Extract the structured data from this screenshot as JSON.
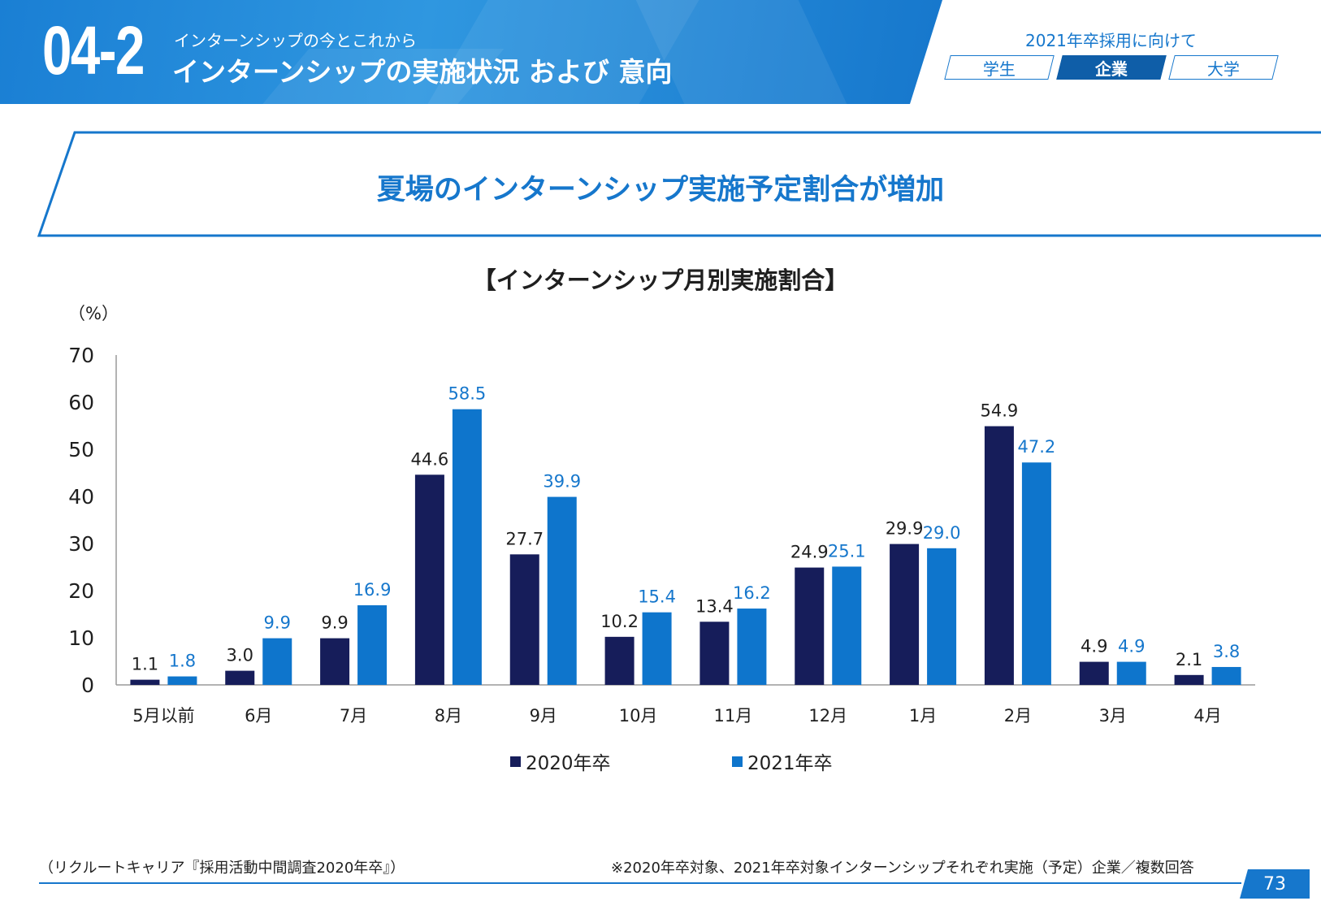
{
  "header": {
    "section_no": "04-2",
    "subtitle": "インターンシップの今とこれから",
    "title": "インターンシップの実施状況 および 意向",
    "recruit_label": "2021年卒採用に向けて",
    "tabs": [
      {
        "label": "学生",
        "active": false
      },
      {
        "label": "企業",
        "active": true
      },
      {
        "label": "大学",
        "active": false
      }
    ]
  },
  "headline": "夏場のインターンシップ実施予定割合が増加",
  "chart_data": {
    "type": "bar",
    "title": "【インターンシップ月別実施割合】",
    "ylabel": "（%）",
    "xlabel": "",
    "ylim": [
      0,
      70
    ],
    "yticks": [
      0,
      10,
      20,
      30,
      40,
      50,
      60,
      70
    ],
    "categories": [
      "5月以前",
      "6月",
      "7月",
      "8月",
      "9月",
      "10月",
      "11月",
      "12月",
      "1月",
      "2月",
      "3月",
      "4月"
    ],
    "series": [
      {
        "name": "2020年卒",
        "color": "#161d5a",
        "label_color": "#1f1f1f",
        "values": [
          1.1,
          3.0,
          9.9,
          44.6,
          27.7,
          10.2,
          13.4,
          24.9,
          29.9,
          54.9,
          4.9,
          2.1
        ]
      },
      {
        "name": "2021年卒",
        "color": "#0e75cc",
        "label_color": "#1677cc",
        "values": [
          1.8,
          9.9,
          16.9,
          58.5,
          39.9,
          15.4,
          16.2,
          25.1,
          29.0,
          47.2,
          4.9,
          3.8
        ]
      }
    ],
    "grid": false,
    "legend": "bottom"
  },
  "footer": {
    "source": "（リクルートキャリア『採用活動中間調査2020年卒』）",
    "note": "※2020年卒対象、2021年卒対象インターンシップそれぞれ実施（予定）企業／複数回答",
    "page": "73"
  }
}
